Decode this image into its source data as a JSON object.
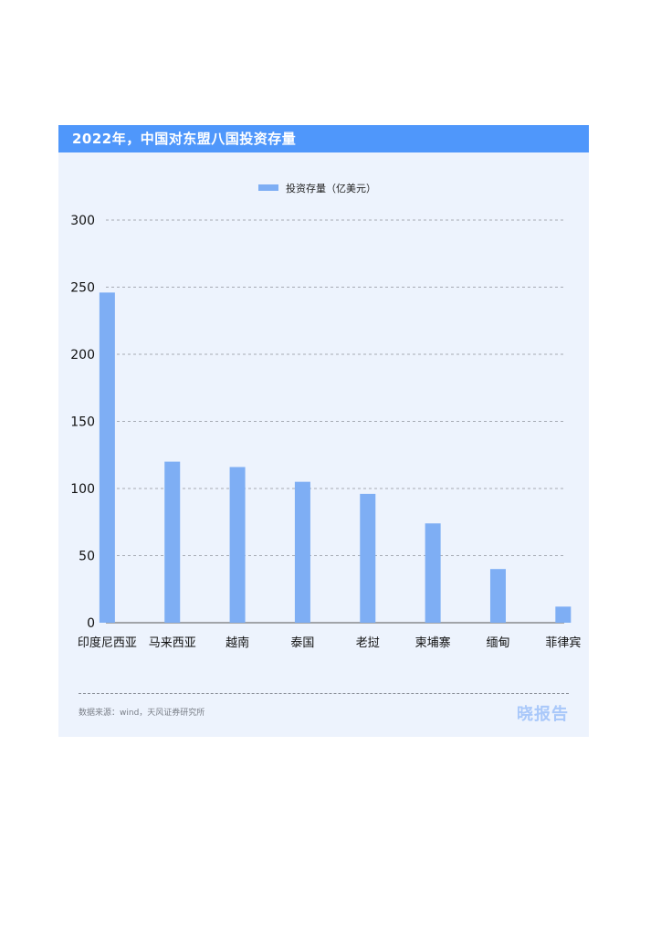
{
  "chart_data": {
    "type": "bar",
    "title": "2022年，中国对东盟八国投资存量",
    "categories": [
      "印度尼西亚",
      "马来西亚",
      "越南",
      "泰国",
      "老挝",
      "柬埔寨",
      "缅甸",
      "菲律宾"
    ],
    "series": [
      {
        "name": "投资存量（亿美元）",
        "values": [
          246,
          120,
          116,
          105,
          96,
          74,
          40,
          12
        ]
      }
    ],
    "ylim": [
      0,
      300
    ],
    "yticks": [
      0,
      50,
      100,
      150,
      200,
      250,
      300
    ],
    "grid": true,
    "legend": "top-center",
    "colors": {
      "bar": "#7eaef4",
      "title_bar": "#4f97fb",
      "background": "#edf3fd"
    }
  },
  "footer": {
    "source": "数据来源：wind，天风证券研究所",
    "brand": "晓报告"
  }
}
